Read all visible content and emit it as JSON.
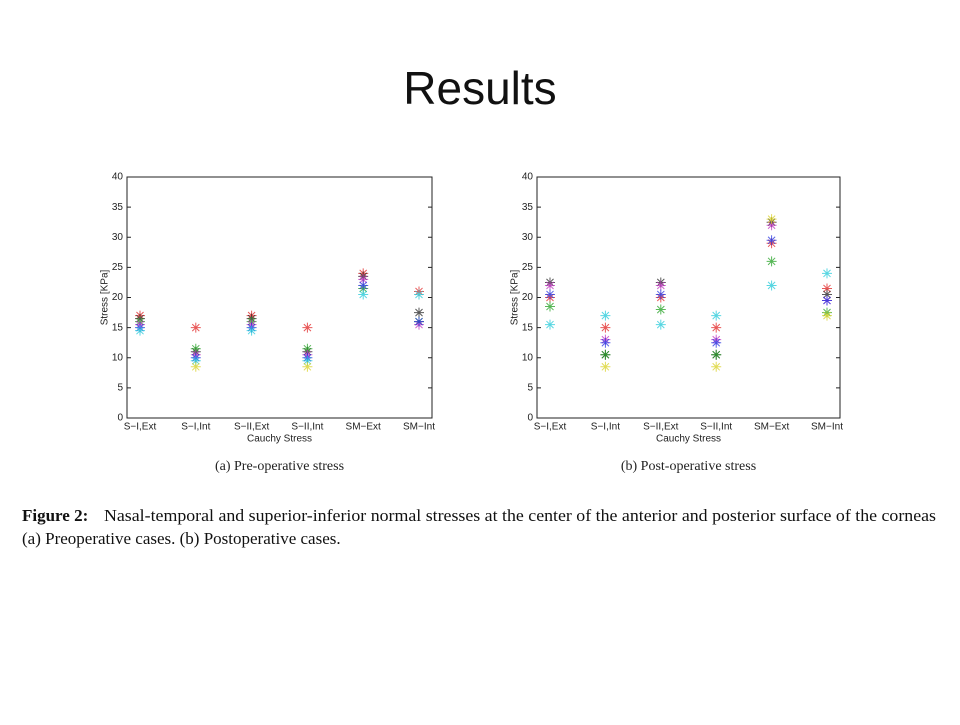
{
  "slide_title": "Results",
  "caption": {
    "label": "Figure 2:",
    "line1": "Nasal-temporal and superior-inferior normal stresses at the center of the anterior and posterior surface of the corneas",
    "line2": "(a) Preoperative cases. (b) Postoperative cases."
  },
  "chart_data": [
    {
      "type": "scatter",
      "caption": "(a)  Pre-operative stress",
      "xlabel": "Cauchy Stress",
      "ylabel": "Stress [KPa]",
      "categories": [
        "S−I,Ext",
        "S−I,Int",
        "S−II,Ext",
        "S−II,Int",
        "SM−Ext",
        "SM−Int"
      ],
      "ylim": [
        0,
        40
      ],
      "yticks": [
        0,
        5,
        10,
        15,
        20,
        25,
        30,
        35,
        40
      ],
      "marker": "asterisk",
      "series": [
        {
          "color": "#e02020",
          "values": [
            17,
            15,
            17,
            15,
            24,
            21
          ]
        },
        {
          "color": "#202020",
          "values": [
            16.5,
            11,
            16.5,
            11,
            23.5,
            17.5
          ]
        },
        {
          "color": "#20a020",
          "values": [
            16,
            11.5,
            16,
            11.5,
            21.5,
            16
          ]
        },
        {
          "color": "#c030c0",
          "values": [
            15.5,
            10.5,
            15.5,
            10.5,
            23,
            15.5
          ]
        },
        {
          "color": "#2030e0",
          "values": [
            15,
            10,
            15,
            10,
            22,
            16
          ]
        },
        {
          "color": "#20c8d8",
          "values": [
            14.5,
            9.5,
            14.5,
            9.5,
            20.5,
            20.5
          ]
        },
        {
          "color": "#d8d020",
          "values": [
            null,
            8.5,
            null,
            8.5,
            null,
            null
          ]
        }
      ]
    },
    {
      "type": "scatter",
      "caption": "(b)  Post-operative stress",
      "xlabel": "Cauchy Stress",
      "ylabel": "Stress [KPa]",
      "categories": [
        "S−I,Ext",
        "S−I,Int",
        "S−II,Ext",
        "S−II,Int",
        "SM−Ext",
        "SM−Int"
      ],
      "ylim": [
        0,
        40
      ],
      "yticks": [
        0,
        5,
        10,
        15,
        20,
        25,
        30,
        35,
        40
      ],
      "marker": "asterisk",
      "series": [
        {
          "color": "#e02020",
          "values": [
            20,
            15,
            20,
            15,
            29,
            21.5
          ]
        },
        {
          "color": "#202020",
          "values": [
            22.5,
            10.5,
            22.5,
            10.5,
            32.5,
            20.5
          ]
        },
        {
          "color": "#20a020",
          "values": [
            18.5,
            10.5,
            18,
            10.5,
            26,
            17.5
          ]
        },
        {
          "color": "#c030c0",
          "values": [
            22,
            13,
            22,
            13,
            32,
            19.5
          ]
        },
        {
          "color": "#2030e0",
          "values": [
            20.5,
            12.5,
            20.5,
            12.5,
            29.5,
            19.5
          ]
        },
        {
          "color": "#20c8d8",
          "values": [
            15.5,
            17,
            15.5,
            17,
            22,
            24
          ]
        },
        {
          "color": "#d8d020",
          "values": [
            null,
            8.5,
            null,
            8.5,
            33,
            17
          ]
        }
      ]
    }
  ]
}
